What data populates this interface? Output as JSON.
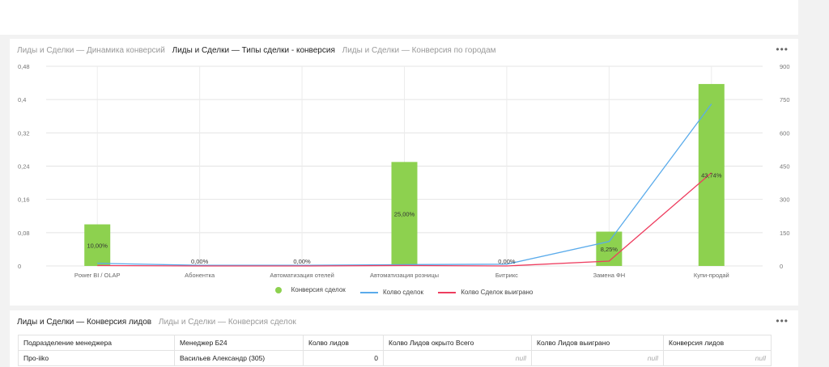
{
  "chart_tabs": [
    {
      "label": "Лиды и Сделки — Динамика конверсий",
      "active": false
    },
    {
      "label": "Лиды и Сделки — Типы сделки - конверсия",
      "active": true
    },
    {
      "label": "Лиды и Сделки — Конверсия по городам",
      "active": false
    }
  ],
  "more_label": "•••",
  "chart_data": {
    "type": "bar",
    "categories": [
      "Power BI / OLAP",
      "Абонентка",
      "Автоматизация отелей",
      "Автоматизация розницы",
      "Битрикс",
      "Замена ФН",
      "Купи-продай"
    ],
    "y_left": {
      "min": 0,
      "max": 0.48,
      "ticks": [
        "0",
        "0,08",
        "0,16",
        "0,24",
        "0,32",
        "0,4",
        "0,48"
      ]
    },
    "y_right": {
      "min": 0,
      "max": 900,
      "ticks": [
        "0",
        "150",
        "300",
        "450",
        "600",
        "750",
        "900"
      ]
    },
    "series": [
      {
        "name": "Конверсия сделок",
        "kind": "bar",
        "axis": "left",
        "color": "#8dd14f",
        "values": [
          0.1,
          0,
          0,
          0.25,
          0,
          0.0825,
          0.4374
        ],
        "labels": [
          "10,00%",
          "0,00%",
          "0,00%",
          "25,00%",
          "0,00%",
          "8,25%",
          "43,74%"
        ]
      },
      {
        "name": "Колво сделок",
        "kind": "line",
        "axis": "right",
        "color": "#5aabeb",
        "values": [
          12,
          3,
          3,
          6,
          8,
          110,
          730
        ]
      },
      {
        "name": "Колво Сделок выиграно",
        "kind": "line",
        "axis": "right",
        "color": "#ee3d5f",
        "values": [
          2,
          0,
          0,
          2,
          0,
          22,
          420
        ]
      }
    ],
    "grid": true,
    "legend": "bottom"
  },
  "table_tabs": [
    {
      "label": "Лиды и Сделки — Конверсия лидов",
      "active": true
    },
    {
      "label": "Лиды и Сделки — Конверсия сделок",
      "active": false
    }
  ],
  "table": {
    "columns": [
      "Подразделение менеджера",
      "Менеджер Б24",
      "Колво лидов",
      "Колво Лидов окрыто Всего",
      "Колво Лидов выиграно",
      "Конверсия лидов"
    ],
    "rows": [
      [
        "Про-iiko",
        "Васильев Александр (305)",
        "0",
        "null",
        "null",
        "null"
      ]
    ]
  }
}
